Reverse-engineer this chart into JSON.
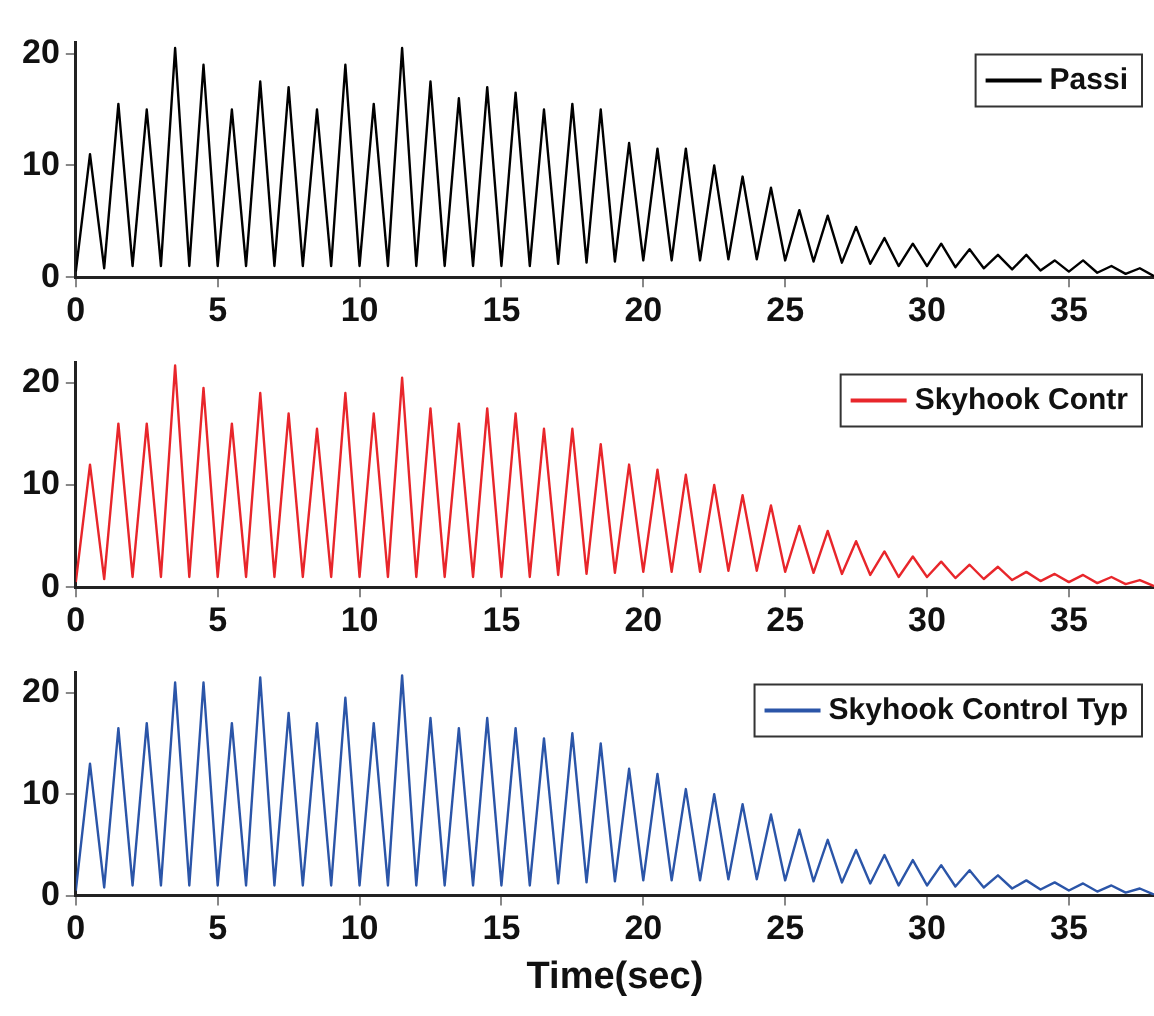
{
  "chart_data": [
    {
      "type": "line",
      "x": [
        0,
        0.5,
        1,
        1.5,
        2,
        2.5,
        3,
        3.5,
        4,
        4.5,
        5,
        5.5,
        6,
        6.5,
        7,
        7.5,
        8,
        8.5,
        9,
        9.5,
        10,
        10.5,
        11,
        11.5,
        12,
        12.5,
        13,
        13.5,
        14,
        14.5,
        15,
        15.5,
        16,
        16.5,
        17,
        17.5,
        18,
        18.5,
        19,
        19.5,
        20,
        20.5,
        21,
        21.5,
        22,
        22.5,
        23,
        23.5,
        24,
        24.5,
        25,
        25.5,
        26,
        26.5,
        27,
        27.5,
        28,
        28.5,
        29,
        29.5,
        30,
        30.5,
        31,
        31.5,
        32,
        32.5,
        33,
        33.5,
        34,
        34.5,
        35,
        35.5,
        36,
        36.5,
        37,
        37.5,
        38
      ],
      "xlim": [
        0,
        38
      ],
      "xticks": [
        0,
        5,
        10,
        15,
        20,
        25,
        30,
        35
      ],
      "ylim": [
        0,
        21
      ],
      "yticks": [
        0,
        10,
        20
      ],
      "legend": "top right",
      "marker": "none",
      "line_style": "solid",
      "series": [
        {
          "name": "Passi",
          "color": "#000000",
          "values": [
            0.5,
            11,
            0.8,
            15.5,
            1,
            15,
            1,
            20.5,
            1,
            19,
            1,
            15,
            1,
            17.5,
            1,
            17,
            1,
            15,
            1,
            19,
            1,
            15.5,
            1,
            20.5,
            1,
            17.5,
            1,
            16,
            1,
            17,
            1,
            16.5,
            1,
            15,
            1.2,
            15.5,
            1.3,
            15,
            1.4,
            12,
            1.5,
            11.5,
            1.5,
            11.5,
            1.5,
            10,
            1.6,
            9,
            1.6,
            8,
            1.5,
            6,
            1.4,
            5.5,
            1.3,
            4.5,
            1.2,
            3.5,
            1,
            3,
            1,
            3,
            0.9,
            2.5,
            0.8,
            2,
            0.7,
            2,
            0.6,
            1.5,
            0.5,
            1.5,
            0.4,
            1,
            0.3,
            0.8,
            0.1
          ]
        }
      ]
    },
    {
      "type": "line",
      "x": [
        0,
        0.5,
        1,
        1.5,
        2,
        2.5,
        3,
        3.5,
        4,
        4.5,
        5,
        5.5,
        6,
        6.5,
        7,
        7.5,
        8,
        8.5,
        9,
        9.5,
        10,
        10.5,
        11,
        11.5,
        12,
        12.5,
        13,
        13.5,
        14,
        14.5,
        15,
        15.5,
        16,
        16.5,
        17,
        17.5,
        18,
        18.5,
        19,
        19.5,
        20,
        20.5,
        21,
        21.5,
        22,
        22.5,
        23,
        23.5,
        24,
        24.5,
        25,
        25.5,
        26,
        26.5,
        27,
        27.5,
        28,
        28.5,
        29,
        29.5,
        30,
        30.5,
        31,
        31.5,
        32,
        32.5,
        33,
        33.5,
        34,
        34.5,
        35,
        35.5,
        36,
        36.5,
        37,
        37.5,
        38
      ],
      "xlim": [
        0,
        38
      ],
      "xticks": [
        0,
        5,
        10,
        15,
        20,
        25,
        30,
        35
      ],
      "ylim": [
        0,
        22
      ],
      "yticks": [
        0,
        10,
        20
      ],
      "legend": "top right",
      "marker": "none",
      "line_style": "solid",
      "series": [
        {
          "name": "Skyhook Contr",
          "color": "#e8262b",
          "values": [
            0.5,
            12,
            0.8,
            16,
            1,
            16,
            1,
            21.7,
            1,
            19.5,
            1,
            16,
            1,
            19,
            1,
            17,
            1,
            15.5,
            1,
            19,
            1,
            17,
            1,
            20.5,
            1,
            17.5,
            1,
            16,
            1,
            17.5,
            1,
            17,
            1,
            15.5,
            1.2,
            15.5,
            1.3,
            14,
            1.4,
            12,
            1.5,
            11.5,
            1.5,
            11,
            1.5,
            10,
            1.6,
            9,
            1.6,
            8,
            1.5,
            6,
            1.4,
            5.5,
            1.3,
            4.5,
            1.2,
            3.5,
            1,
            3,
            1,
            2.5,
            0.9,
            2.2,
            0.8,
            2,
            0.7,
            1.5,
            0.6,
            1.3,
            0.5,
            1.2,
            0.4,
            1,
            0.3,
            0.7,
            0.1
          ]
        }
      ]
    },
    {
      "type": "line",
      "xlabel": "Time(sec)",
      "x": [
        0,
        0.5,
        1,
        1.5,
        2,
        2.5,
        3,
        3.5,
        4,
        4.5,
        5,
        5.5,
        6,
        6.5,
        7,
        7.5,
        8,
        8.5,
        9,
        9.5,
        10,
        10.5,
        11,
        11.5,
        12,
        12.5,
        13,
        13.5,
        14,
        14.5,
        15,
        15.5,
        16,
        16.5,
        17,
        17.5,
        18,
        18.5,
        19,
        19.5,
        20,
        20.5,
        21,
        21.5,
        22,
        22.5,
        23,
        23.5,
        24,
        24.5,
        25,
        25.5,
        26,
        26.5,
        27,
        27.5,
        28,
        28.5,
        29,
        29.5,
        30,
        30.5,
        31,
        31.5,
        32,
        32.5,
        33,
        33.5,
        34,
        34.5,
        35,
        35.5,
        36,
        36.5,
        37,
        37.5,
        38
      ],
      "xlim": [
        0,
        38
      ],
      "xticks": [
        0,
        5,
        10,
        15,
        20,
        25,
        30,
        35
      ],
      "ylim": [
        0,
        22
      ],
      "yticks": [
        0,
        10,
        20
      ],
      "legend": "top right",
      "marker": "none",
      "line_style": "solid",
      "series": [
        {
          "name": "Skyhook Control Typ",
          "color": "#2b55a8",
          "values": [
            0.5,
            13,
            0.8,
            16.5,
            1,
            17,
            1,
            21,
            1,
            21,
            1,
            17,
            1,
            21.5,
            1,
            18,
            1,
            17,
            1,
            19.5,
            1,
            17,
            1,
            21.7,
            1,
            17.5,
            1,
            16.5,
            1,
            17.5,
            1,
            16.5,
            1,
            15.5,
            1.2,
            16,
            1.3,
            15,
            1.4,
            12.5,
            1.5,
            12,
            1.5,
            10.5,
            1.5,
            10,
            1.6,
            9,
            1.6,
            8,
            1.5,
            6.5,
            1.4,
            5.5,
            1.3,
            4.5,
            1.2,
            4,
            1,
            3.5,
            1,
            3,
            0.9,
            2.5,
            0.8,
            2,
            0.7,
            1.5,
            0.6,
            1.3,
            0.5,
            1.2,
            0.4,
            1,
            0.3,
            0.7,
            0.1
          ]
        }
      ]
    }
  ]
}
